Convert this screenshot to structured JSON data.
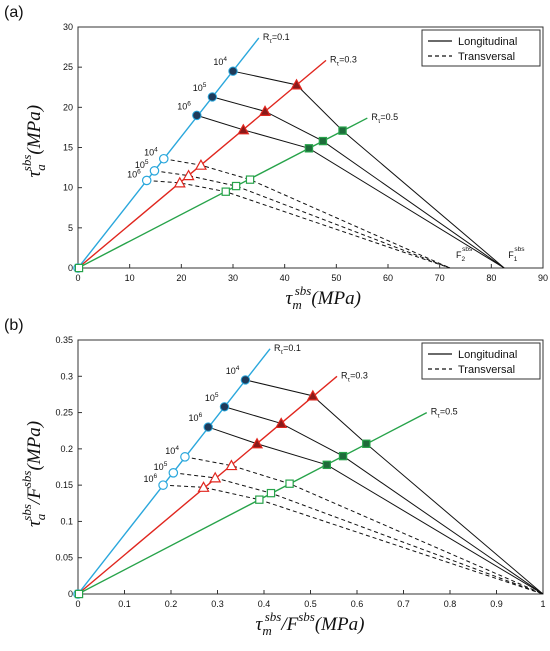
{
  "panels": [
    {
      "panel_label": "(a)",
      "xlabel_main": "τ",
      "xlabel_sub": "m",
      "xlabel_sup": "sbs",
      "xlabel_rest": "(MPa)",
      "ylabel_main": "τ",
      "ylabel_sub": "a",
      "ylabel_sup": "sbs",
      "ylabel_rest": "(MPa)",
      "xticks": [
        "0",
        "10",
        "20",
        "30",
        "40",
        "50",
        "60",
        "70",
        "80",
        "90"
      ],
      "yticks": [
        "0",
        "5",
        "10",
        "15",
        "20",
        "25",
        "30"
      ],
      "legend": {
        "solid": "Longitudinal",
        "dashed": "Transversal"
      },
      "endpoint_labels": [
        {
          "main": "F",
          "sub": "2",
          "sup": "sbs"
        },
        {
          "main": "F",
          "sub": "1",
          "sup": "sbs"
        }
      ]
    },
    {
      "panel_label": "(b)",
      "xlabel_main": "τ",
      "xlabel_sub": "m",
      "xlabel_sup": "sbs",
      "xlabel_rest": "/F",
      "xlabel_sup2": "sbs",
      "xlabel_rest2": "(MPa)",
      "ylabel_main": "τ",
      "ylabel_sub": "a",
      "ylabel_sup": "sbs",
      "ylabel_rest": "/F",
      "ylabel_sup2": "sbs",
      "ylabel_rest2": "(MPa)",
      "xticks": [
        "0",
        "0.1",
        "0.2",
        "0.3",
        "0.4",
        "0.5",
        "0.6",
        "0.7",
        "0.8",
        "0.9",
        "1"
      ],
      "yticks": [
        "0",
        "0.05",
        "0.1",
        "0.15",
        "0.2",
        "0.25",
        "0.3",
        "0.35"
      ],
      "legend": {
        "solid": "Longitudinal",
        "dashed": "Transversal"
      }
    }
  ],
  "ratio_labels": [
    "R",
    "τ",
    "=0.1",
    "=0.3",
    "=0.5"
  ],
  "cycle_labels": [
    "10",
    "4",
    "5",
    "6"
  ],
  "colors": {
    "r01": "#2aa7dc",
    "r03": "#e0261e",
    "r05": "#27a34a",
    "black": "#111111",
    "circle_solid_fill": "#1f3a5a",
    "triangle_solid_fill": "#8b1a1a",
    "square_solid_fill": "#1e6b3a"
  },
  "chart_data": [
    {
      "type": "line",
      "panel": "(a)",
      "xlim": [
        0,
        90
      ],
      "ylim": [
        0,
        30
      ],
      "grid": false,
      "legend_position": "top-right",
      "ratio_lines": [
        {
          "R": "0.1",
          "slope": 0.8182,
          "x_end": 35
        },
        {
          "R": "0.3",
          "slope": 0.5385,
          "x_end": 48
        },
        {
          "R": "0.5",
          "slope": 0.3333,
          "x_end": 56
        }
      ],
      "longitudinal_endpoint": [
        82.5,
        0
      ],
      "transversal_endpoint": [
        72,
        0
      ],
      "longitudinal_points": [
        {
          "cycles": "10^4",
          "R01": [
            30.0,
            24.5
          ],
          "R03": [
            42.3,
            22.8
          ],
          "R05": [
            51.2,
            17.1
          ]
        },
        {
          "cycles": "10^5",
          "R01": [
            26.0,
            21.3
          ],
          "R03": [
            36.2,
            19.5
          ],
          "R05": [
            47.4,
            15.8
          ]
        },
        {
          "cycles": "10^6",
          "R01": [
            23.0,
            19.0
          ],
          "R03": [
            32.0,
            17.2
          ],
          "R05": [
            44.7,
            14.9
          ]
        }
      ],
      "transversal_points": [
        {
          "cycles": "10^4",
          "R01": [
            16.6,
            13.6
          ],
          "R03": [
            23.8,
            12.8
          ],
          "R05": [
            33.3,
            11.0
          ]
        },
        {
          "cycles": "10^5",
          "R01": [
            14.8,
            12.1
          ],
          "R03": [
            21.4,
            11.5
          ],
          "R05": [
            30.6,
            10.2
          ]
        },
        {
          "cycles": "10^6",
          "R01": [
            13.3,
            10.9
          ],
          "R03": [
            19.7,
            10.6
          ],
          "R05": [
            28.6,
            9.5
          ]
        }
      ]
    },
    {
      "type": "line",
      "panel": "(b)",
      "xlim": [
        0,
        1
      ],
      "ylim": [
        0,
        0.35
      ],
      "grid": false,
      "legend_position": "top-right",
      "ratio_lines": [
        {
          "R": "0.1",
          "slope": 0.8182,
          "x_end": 0.413
        },
        {
          "R": "0.3",
          "slope": 0.5385,
          "x_end": 0.557
        },
        {
          "R": "0.5",
          "slope": 0.3333,
          "x_end": 0.75
        }
      ],
      "longitudinal_endpoint": [
        1,
        0
      ],
      "transversal_endpoint": [
        1,
        0
      ],
      "longitudinal_points": [
        {
          "cycles": "10^4",
          "R01": [
            0.36,
            0.295
          ],
          "R03": [
            0.505,
            0.273
          ],
          "R05": [
            0.62,
            0.207
          ]
        },
        {
          "cycles": "10^5",
          "R01": [
            0.315,
            0.258
          ],
          "R03": [
            0.437,
            0.235
          ],
          "R05": [
            0.57,
            0.19
          ]
        },
        {
          "cycles": "10^6",
          "R01": [
            0.28,
            0.23
          ],
          "R03": [
            0.385,
            0.207
          ],
          "R05": [
            0.535,
            0.178
          ]
        }
      ],
      "transversal_points": [
        {
          "cycles": "10^4",
          "R01": [
            0.23,
            0.189
          ],
          "R03": [
            0.33,
            0.177
          ],
          "R05": [
            0.455,
            0.152
          ]
        },
        {
          "cycles": "10^5",
          "R01": [
            0.205,
            0.167
          ],
          "R03": [
            0.295,
            0.16
          ],
          "R05": [
            0.415,
            0.139
          ]
        },
        {
          "cycles": "10^6",
          "R01": [
            0.183,
            0.15
          ],
          "R03": [
            0.27,
            0.147
          ],
          "R05": [
            0.39,
            0.13
          ]
        }
      ]
    }
  ]
}
